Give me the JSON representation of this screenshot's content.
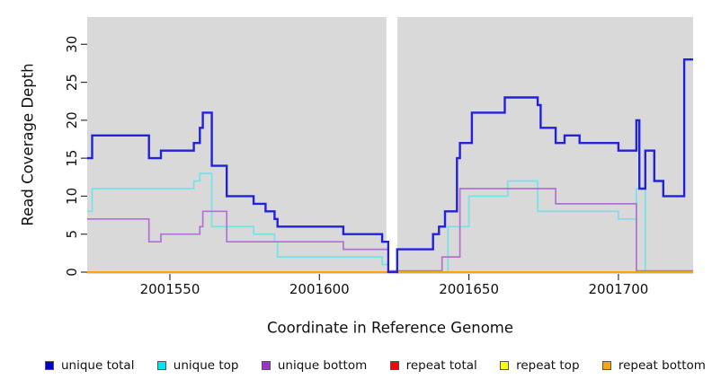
{
  "chart_data": {
    "type": "line",
    "subtype": "step",
    "title": "",
    "xlabel": "Coordinate in Reference Genome",
    "ylabel": "Read Coverage Depth",
    "xlim": [
      2001522,
      2001725
    ],
    "ylim": [
      0,
      33.5
    ],
    "x_ticks": [
      "2001550",
      "2001600",
      "2001650",
      "2001700"
    ],
    "x_tick_values": [
      2001550,
      2001600,
      2001650,
      2001700
    ],
    "y_ticks": [
      "0",
      "5",
      "10",
      "15",
      "20",
      "25",
      "30"
    ],
    "y_tick_values": [
      0,
      5,
      10,
      15,
      20,
      25,
      30
    ],
    "grid": "off",
    "plot_bg_color": "#D9D9D9",
    "page_bg_color": "#FFFFFF",
    "gap_band": {
      "x_start": 2001622.4,
      "x_end": 2001626.1,
      "color": "#FFFFFF"
    },
    "legend_position": "bottom",
    "draw_order": [
      "repeat top",
      "repeat total",
      "unique top",
      "unique bottom",
      "repeat bottom",
      "unique total"
    ],
    "series": [
      {
        "name": "unique total",
        "color": "#0000CD",
        "line_color": "#2121DE",
        "line_width": 2.4,
        "points": [
          [
            2001522,
            15
          ],
          [
            2001524,
            18
          ],
          [
            2001543,
            15
          ],
          [
            2001547,
            16
          ],
          [
            2001558,
            17
          ],
          [
            2001560,
            19
          ],
          [
            2001561,
            21
          ],
          [
            2001564,
            14
          ],
          [
            2001569,
            10
          ],
          [
            2001578,
            9
          ],
          [
            2001582,
            8
          ],
          [
            2001585,
            7
          ],
          [
            2001586,
            6
          ],
          [
            2001608,
            5
          ],
          [
            2001621,
            4
          ],
          [
            2001623,
            0
          ],
          [
            2001626,
            3
          ],
          [
            2001638,
            5
          ],
          [
            2001640,
            6
          ],
          [
            2001642,
            8
          ],
          [
            2001646,
            15
          ],
          [
            2001647,
            17
          ],
          [
            2001651,
            21
          ],
          [
            2001662,
            23
          ],
          [
            2001673,
            22
          ],
          [
            2001674,
            19
          ],
          [
            2001679,
            17
          ],
          [
            2001682,
            18
          ],
          [
            2001687,
            17
          ],
          [
            2001700,
            16
          ],
          [
            2001706,
            20
          ],
          [
            2001707,
            11
          ],
          [
            2001709,
            16
          ],
          [
            2001712,
            12
          ],
          [
            2001715,
            10
          ],
          [
            2001722,
            28
          ],
          [
            2001725,
            28
          ]
        ]
      },
      {
        "name": "unique top",
        "color": "#00E5EE",
        "line_color": "#74E3E8",
        "line_width": 1.7,
        "points": [
          [
            2001522,
            8
          ],
          [
            2001524,
            11
          ],
          [
            2001558,
            12
          ],
          [
            2001560,
            13
          ],
          [
            2001564,
            6
          ],
          [
            2001578,
            5
          ],
          [
            2001585,
            4
          ],
          [
            2001586,
            2
          ],
          [
            2001621,
            1
          ],
          [
            2001623,
            0
          ],
          [
            2001643,
            6
          ],
          [
            2001650,
            10
          ],
          [
            2001663,
            12
          ],
          [
            2001673,
            8
          ],
          [
            2001700,
            7
          ],
          [
            2001706,
            11
          ],
          [
            2001709,
            0
          ],
          [
            2001725,
            0
          ]
        ]
      },
      {
        "name": "unique bottom",
        "color": "#9A32CD",
        "line_color": "#B26FD6",
        "line_width": 1.7,
        "points": [
          [
            2001522,
            7
          ],
          [
            2001543,
            4
          ],
          [
            2001547,
            5
          ],
          [
            2001560,
            6
          ],
          [
            2001561,
            8
          ],
          [
            2001569,
            4
          ],
          [
            2001608,
            3
          ],
          [
            2001623,
            0
          ],
          [
            2001641,
            2
          ],
          [
            2001647,
            11
          ],
          [
            2001679,
            9
          ],
          [
            2001706,
            0
          ],
          [
            2001725,
            0
          ]
        ]
      },
      {
        "name": "repeat total",
        "color": "#FF0000",
        "line_color": "#EE2222",
        "line_width": 1.6,
        "points": [
          [
            2001522,
            0
          ],
          [
            2001725,
            0
          ]
        ]
      },
      {
        "name": "repeat top",
        "color": "#FFFF00",
        "line_color": "#FFFF00",
        "line_width": 1.6,
        "points": [
          [
            2001522,
            0
          ],
          [
            2001725,
            0
          ]
        ]
      },
      {
        "name": "repeat bottom",
        "color": "#FFA500",
        "line_color": "#FFA500",
        "line_width": 2.0,
        "points": [
          [
            2001522,
            0
          ],
          [
            2001725,
            0
          ]
        ]
      }
    ]
  }
}
